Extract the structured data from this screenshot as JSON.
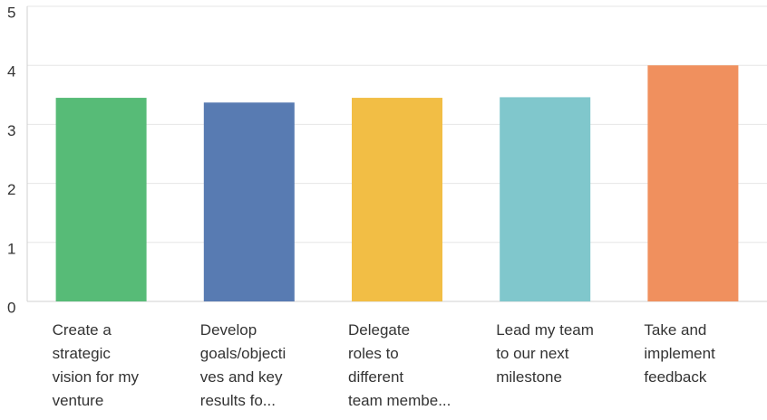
{
  "chart_data": {
    "type": "bar",
    "categories": [
      "Create a\nstrategic\nvision for my\nventure",
      "Develop\ngoals/objecti\nves and key\nresults fo...",
      "Delegate\nroles to\ndifferent\nteam membe...",
      "Lead my team\nto our next\nmilestone",
      "Take and\nimplement\nfeedback"
    ],
    "values": [
      3.45,
      3.37,
      3.45,
      3.46,
      4.0
    ],
    "colors": [
      "#57bb77",
      "#587bb2",
      "#f2be45",
      "#80c7cc",
      "#f0905e"
    ],
    "ylim": [
      0,
      5
    ],
    "yticks": [
      0,
      1,
      2,
      3,
      4,
      5
    ],
    "grid": true
  }
}
